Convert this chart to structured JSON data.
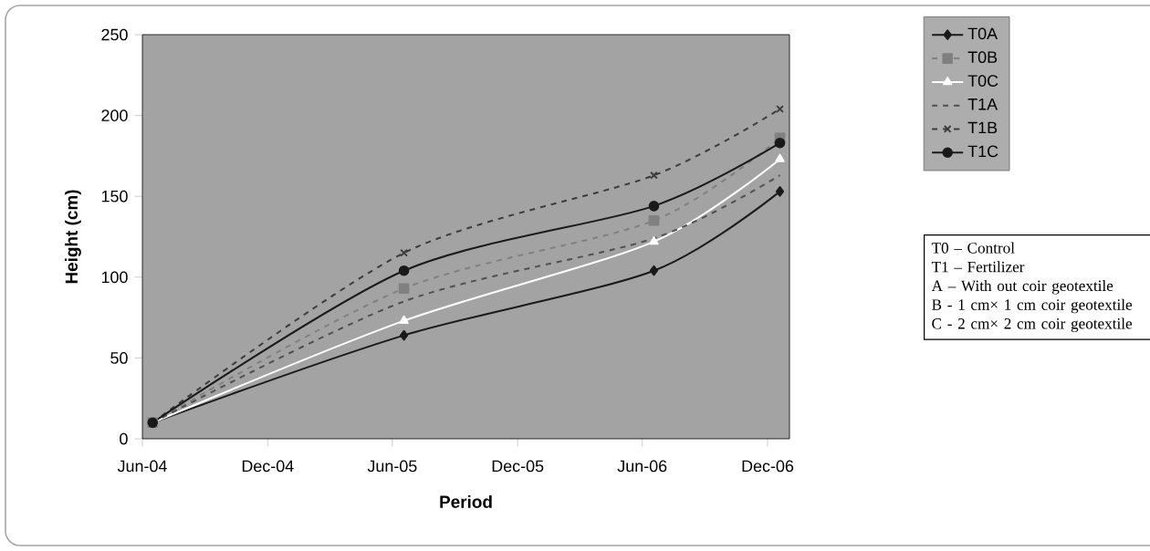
{
  "chart_data": {
    "type": "line",
    "xlabel": "Period",
    "ylabel": "Height (cm)",
    "x": [
      "2004-06-16",
      "2005-06-18",
      "2006-06-18",
      "2006-12-19"
    ],
    "series": [
      {
        "name": "T0A",
        "color": "#1a1a1a",
        "values": [
          10,
          64,
          104,
          153
        ],
        "marker": "diamond",
        "line_style": "solid"
      },
      {
        "name": "T0B",
        "color": "#808080",
        "values": [
          10,
          93,
          135,
          186
        ],
        "marker": "square",
        "line_style": "dashed"
      },
      {
        "name": "T0C",
        "color": "#ffffff",
        "values": [
          10,
          73,
          122,
          173
        ],
        "marker": "triangle",
        "line_style": "solid"
      },
      {
        "name": "T1A",
        "color": "#505050",
        "values": [
          10,
          85,
          124,
          163
        ],
        "marker": "none",
        "line_style": "dashed"
      },
      {
        "name": "T1B",
        "color": "#3c3c3c",
        "values": [
          10,
          115,
          163,
          204
        ],
        "marker": "cross",
        "line_style": "dashed"
      },
      {
        "name": "T1C",
        "color": "#1a1a1a",
        "values": [
          10,
          104,
          144,
          183
        ],
        "marker": "circle",
        "line_style": "solid"
      }
    ],
    "xlim": [
      "2004-06-01",
      "2007-01-02"
    ],
    "xticks": [
      {
        "value": "2004-06-01",
        "label": "Jun-04"
      },
      {
        "value": "2004-12-01",
        "label": "Dec-04"
      },
      {
        "value": "2005-06-01",
        "label": "Jun-05"
      },
      {
        "value": "2005-12-01",
        "label": "Dec-05"
      },
      {
        "value": "2006-06-01",
        "label": "Jun-06"
      },
      {
        "value": "2006-12-01",
        "label": "Dec-06"
      }
    ],
    "ylim": [
      0,
      250
    ],
    "yticks": [
      0,
      50,
      100,
      150,
      200,
      250
    ],
    "grid": false,
    "legend": "top right",
    "annotations": [
      "T0 – Control",
      "T1 – Fertilizer",
      "A – With out coir geotextile",
      "B - 1 cm× 1 cm coir geotextile",
      "C - 2 cm× 2 cm coir geotextile"
    ]
  }
}
